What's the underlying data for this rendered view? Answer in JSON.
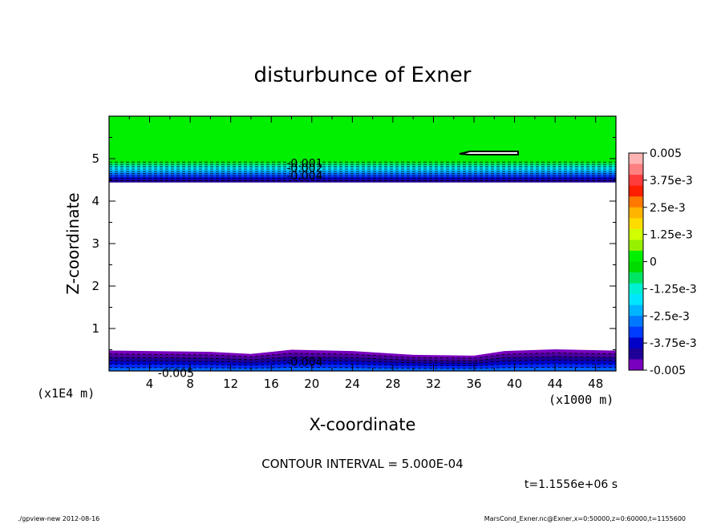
{
  "chart_data": {
    "type": "contour",
    "title": "disturbunce of Exner",
    "xlabel": "X-coordinate",
    "ylabel": "Z-coordinate",
    "x_unit_left": "(x1E4 m)",
    "x_unit_right": "(x1000 m)",
    "xlim": [
      0,
      50
    ],
    "ylim": [
      0,
      6
    ],
    "xticks": [
      4,
      8,
      12,
      16,
      20,
      24,
      28,
      32,
      36,
      40,
      44,
      48
    ],
    "yticks": [
      1,
      2,
      3,
      4,
      5
    ],
    "contour_interval_label": "CONTOUR INTERVAL = 5.000E-04",
    "time_label": "t=1.1556e+06 s",
    "colorbar_labels": [
      "0.005",
      "3.75e-3",
      "2.5e-3",
      "1.25e-3",
      "0",
      "-1.25e-3",
      "-2.5e-3",
      "-3.75e-3",
      "-0.005"
    ],
    "colorbar_levels": [
      0.005,
      0.00375,
      0.0025,
      0.00125,
      0,
      -0.00125,
      -0.0025,
      -0.00375,
      -0.005
    ],
    "colorbar_colors": [
      "#ffb4b4",
      "#ff8080",
      "#ff3c3c",
      "#ff1e00",
      "#ff7800",
      "#ffb400",
      "#ffdc00",
      "#d2ff00",
      "#96f000",
      "#00f000",
      "#00dc00",
      "#00e664",
      "#00f0d2",
      "#00e6ff",
      "#00b4ff",
      "#0078ff",
      "#003cff",
      "#0000c8",
      "#1e0096",
      "#7800be"
    ],
    "contour_labels": [
      {
        "text": "-0.001",
        "x": 19.3,
        "z": 4.9
      },
      {
        "text": "-0.002",
        "x": 19.3,
        "z": 4.78
      },
      {
        "text": "-0.004",
        "x": 19.3,
        "z": 4.6
      },
      {
        "text": "-0.004",
        "x": 19.3,
        "z": 0.22
      },
      {
        "text": "-0.005",
        "x": 6.6,
        "z": -0.05
      }
    ],
    "regions": [
      {
        "name": "upper green region",
        "z_range": [
          4.5,
          6.0
        ],
        "value": 0
      },
      {
        "name": "lower negative layer",
        "z_range": [
          0,
          0.5
        ],
        "value": -0.005
      }
    ],
    "footer_left": "./gpview-new  2012-08-16",
    "footer_right": "MarsCond_Exner.nc@Exner,x=0:50000,z=0:60000,t=1155600"
  }
}
